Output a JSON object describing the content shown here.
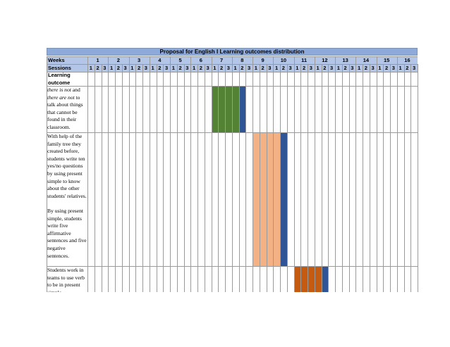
{
  "title": "Proposal for English I Learning outcomes distribution",
  "headers": {
    "weeks": "Weeks",
    "sessions": "Sessions",
    "outcome": "Learning outcome"
  },
  "weeks": [
    "1",
    "2",
    "3",
    "4",
    "5",
    "6",
    "7",
    "8",
    "9",
    "10",
    "11",
    "12",
    "13",
    "14",
    "15",
    "16"
  ],
  "sessions_per_week": [
    "1",
    "2",
    "3"
  ],
  "outcomes": [
    {
      "text_html": "<i>there is not</i> and <i>there are not</i> to talk about things that cannot be found in their classroom.",
      "sessions": [
        19,
        20,
        21,
        22
      ],
      "eval_session": 23,
      "color": "#548235",
      "eval_color": "#2f5597"
    },
    {
      "text": "With help of the family tree they created before, students write ten yes/no questions by using present simple to know about the other students' relatives.\n\nBy using present simple, students write five affirmative sentences and five negative sentences.",
      "sessions": [
        25,
        26,
        27,
        28
      ],
      "eval_session": 29,
      "color": "#f4b183",
      "eval_color": "#2f5597"
    },
    {
      "text": "Students work in teams to use verb to be in present simple",
      "sessions": [
        31,
        32,
        33,
        34
      ],
      "eval_session": 35,
      "color": "#c55a11",
      "eval_color": "#2f5597"
    }
  ],
  "colors": {
    "title_bg": "#8eaadb",
    "header_bg": "#b4c6e7",
    "grid": "#9a9a9a"
  }
}
